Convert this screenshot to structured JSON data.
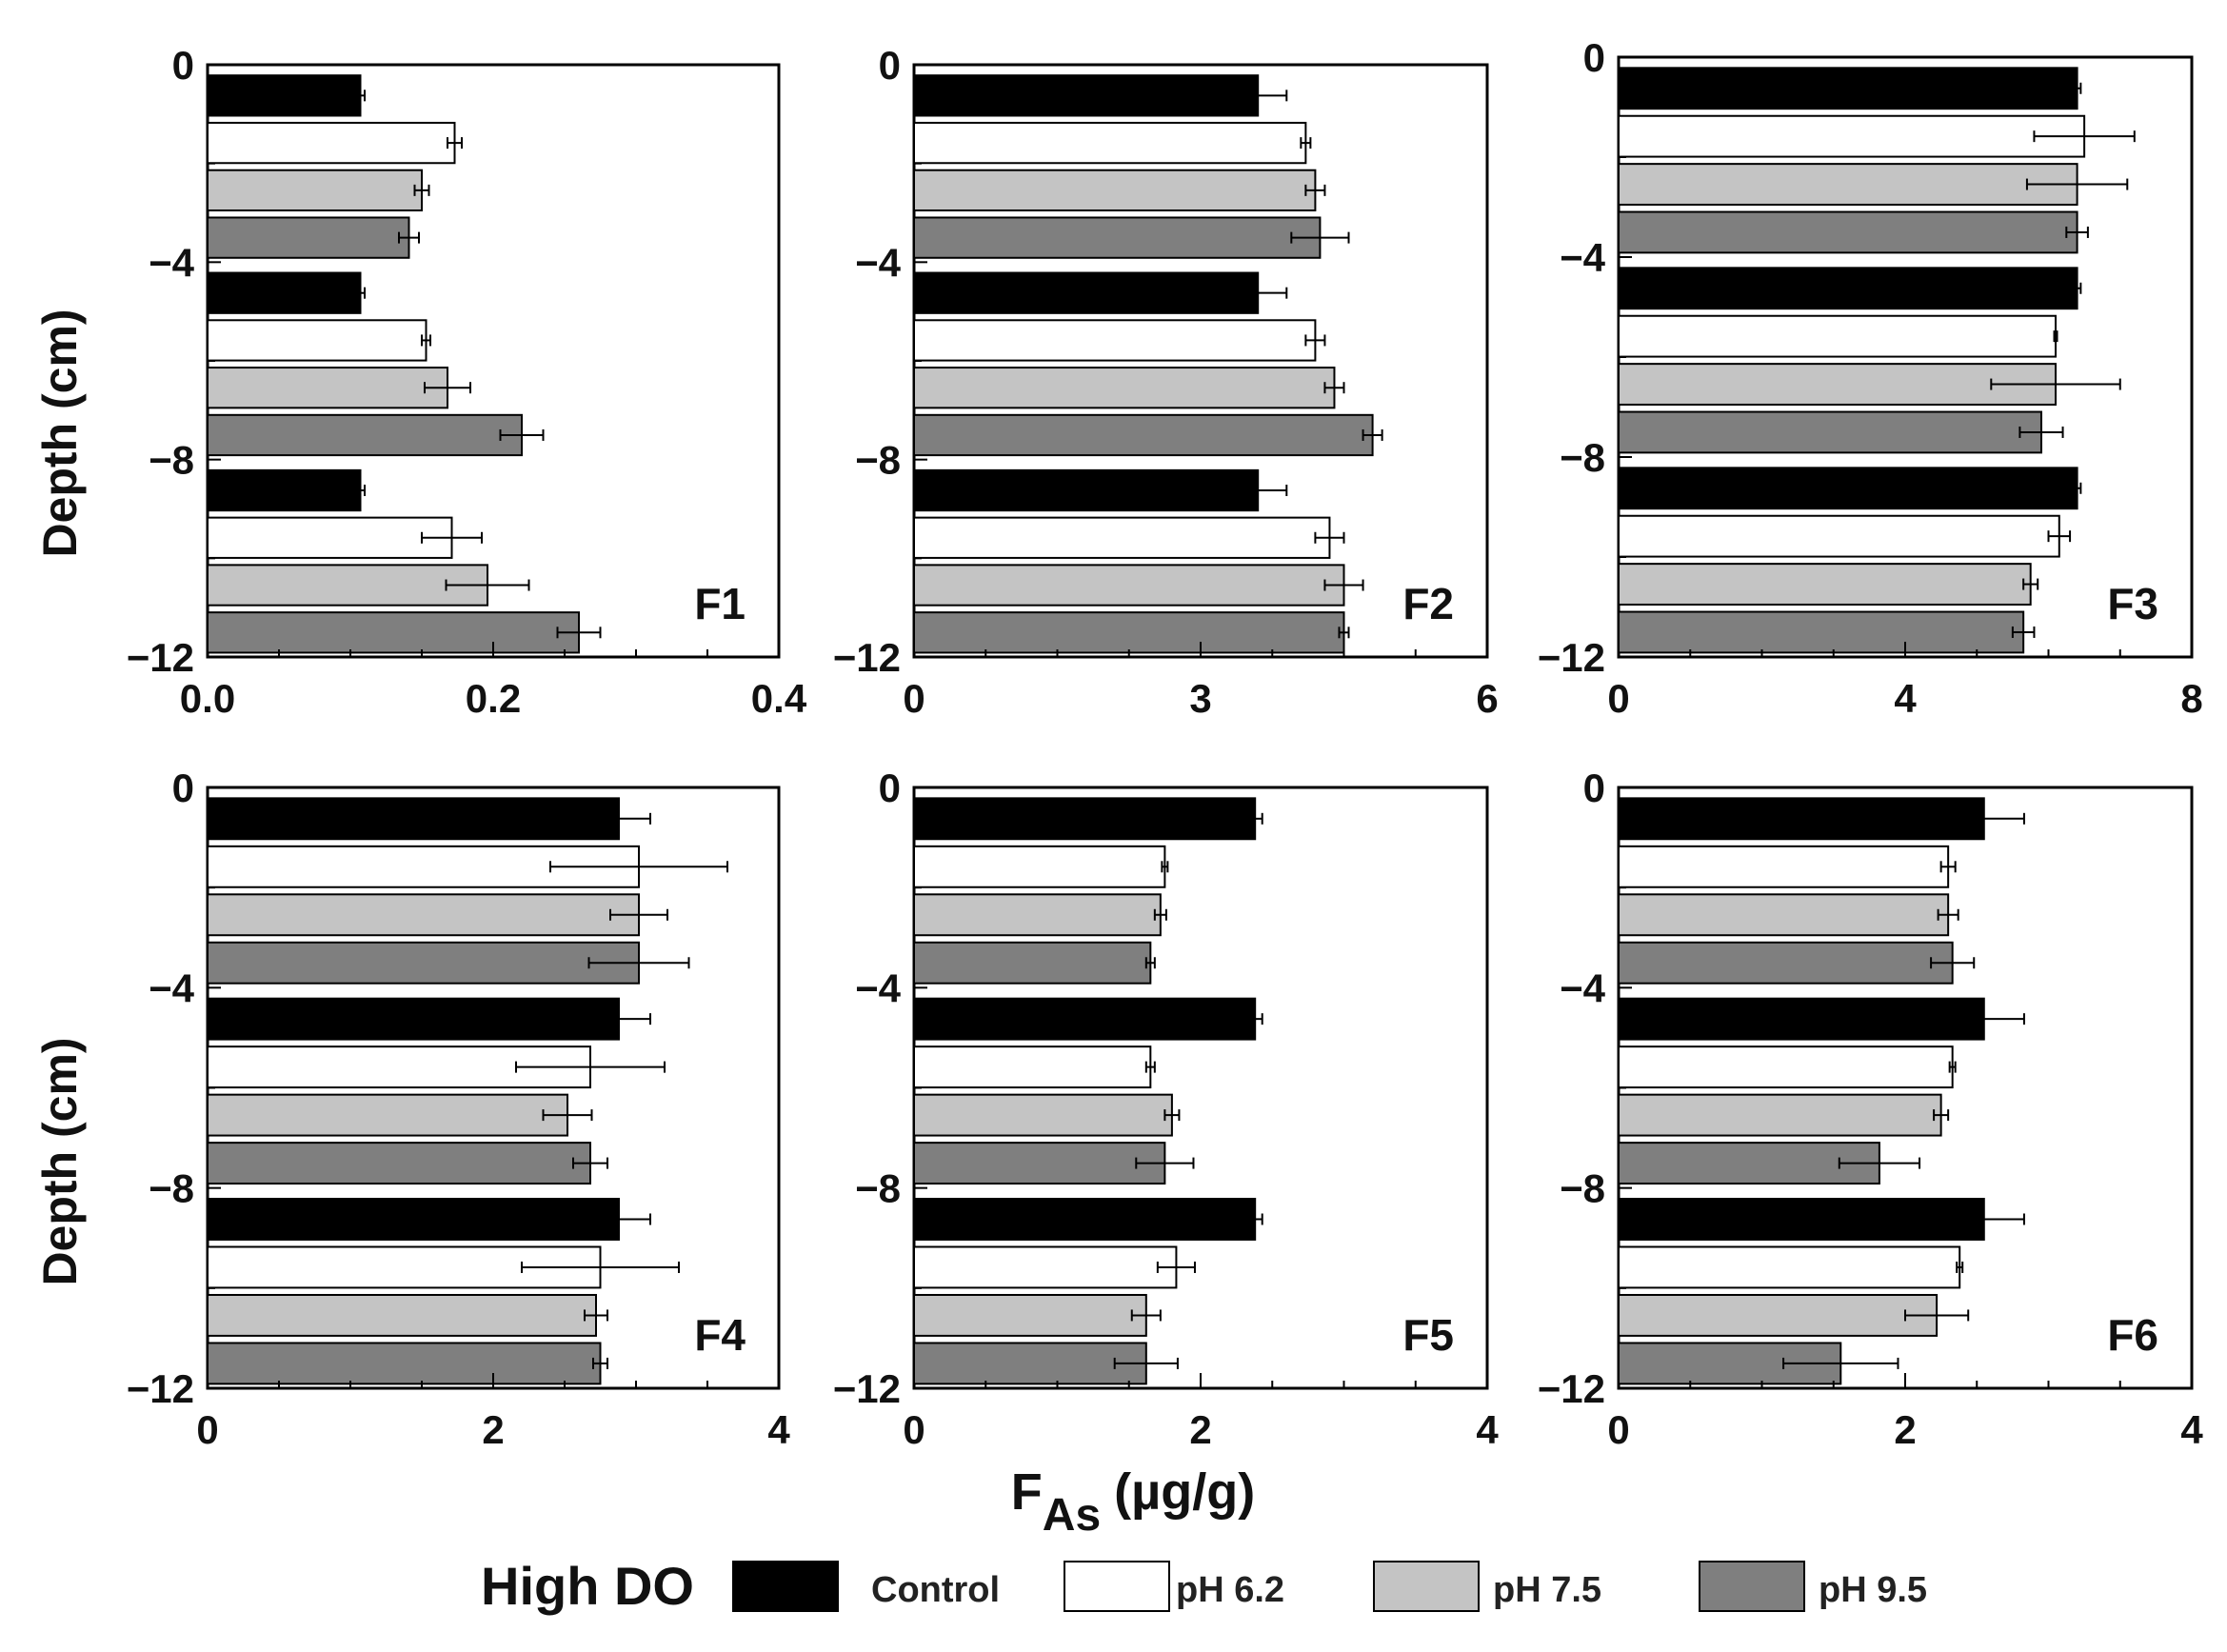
{
  "figure": {
    "ylabel": "Depth (cm)",
    "xlabel_main": "F",
    "xlabel_sub": "As",
    "xlabel_unit": "(µg/g)"
  },
  "legend": {
    "title": "High DO",
    "entries": [
      {
        "label": "Control",
        "color": "#000000"
      },
      {
        "label": "pH 6.2",
        "color": "#ffffff"
      },
      {
        "label": "pH 7.5",
        "color": "#c4c4c4"
      },
      {
        "label": "pH 9.5",
        "color": "#7f7f7f"
      }
    ]
  },
  "chart_data": [
    {
      "type": "bar",
      "orientation": "horizontal",
      "title": "F1",
      "xlim": [
        0,
        0.4
      ],
      "xticks": [
        "0.0",
        "0.2",
        "0.4"
      ],
      "ylim": [
        -12,
        0
      ],
      "yticks": [
        "0",
        "−4",
        "−8",
        "−12"
      ],
      "depth_groups": [
        "0 to -4",
        "-4 to -8",
        "-8 to -12"
      ],
      "series": [
        {
          "name": "Control",
          "values": [
            0.107,
            0.107,
            0.107
          ],
          "errors": [
            0.003,
            0.003,
            0.003
          ]
        },
        {
          "name": "pH 6.2",
          "values": [
            0.173,
            0.153,
            0.171
          ],
          "errors": [
            0.005,
            0.003,
            0.021
          ]
        },
        {
          "name": "pH 7.5",
          "values": [
            0.15,
            0.168,
            0.196
          ],
          "errors": [
            0.005,
            0.016,
            0.029
          ]
        },
        {
          "name": "pH 9.5",
          "values": [
            0.141,
            0.22,
            0.26
          ],
          "errors": [
            0.007,
            0.015,
            0.015
          ]
        }
      ]
    },
    {
      "type": "bar",
      "orientation": "horizontal",
      "title": "F2",
      "xlim": [
        0,
        6
      ],
      "xticks": [
        "0",
        "3",
        "6"
      ],
      "ylim": [
        -12,
        0
      ],
      "yticks": [
        "0",
        "−4",
        "−8",
        "−12"
      ],
      "depth_groups": [
        "0 to -4",
        "-4 to -8",
        "-8 to -12"
      ],
      "series": [
        {
          "name": "Control",
          "values": [
            3.6,
            3.6,
            3.6
          ],
          "errors": [
            0.3,
            0.3,
            0.3
          ]
        },
        {
          "name": "pH 6.2",
          "values": [
            4.1,
            4.2,
            4.35
          ],
          "errors": [
            0.05,
            0.1,
            0.15
          ]
        },
        {
          "name": "pH 7.5",
          "values": [
            4.2,
            4.4,
            4.5
          ],
          "errors": [
            0.1,
            0.1,
            0.2
          ]
        },
        {
          "name": "pH 9.5",
          "values": [
            4.25,
            4.8,
            4.5
          ],
          "errors": [
            0.3,
            0.1,
            0.05
          ]
        }
      ]
    },
    {
      "type": "bar",
      "orientation": "horizontal",
      "title": "F3",
      "xlim": [
        0,
        8
      ],
      "xticks": [
        "0",
        "4",
        "8"
      ],
      "ylim": [
        -12,
        0
      ],
      "yticks": [
        "0",
        "−4",
        "−8",
        "−12"
      ],
      "depth_groups": [
        "0 to -4",
        "-4 to -8",
        "-8 to -12"
      ],
      "series": [
        {
          "name": "Control",
          "values": [
            6.4,
            6.4,
            6.4
          ],
          "errors": [
            0.05,
            0.05,
            0.05
          ]
        },
        {
          "name": "pH 6.2",
          "values": [
            6.5,
            6.1,
            6.15
          ],
          "errors": [
            0.7,
            0.02,
            0.15
          ]
        },
        {
          "name": "pH 7.5",
          "values": [
            6.4,
            6.1,
            5.75
          ],
          "errors": [
            0.7,
            0.9,
            0.1
          ]
        },
        {
          "name": "pH 9.5",
          "values": [
            6.4,
            5.9,
            5.65
          ],
          "errors": [
            0.15,
            0.3,
            0.15
          ]
        }
      ]
    },
    {
      "type": "bar",
      "orientation": "horizontal",
      "title": "F4",
      "xlim": [
        0,
        4
      ],
      "xticks": [
        "0",
        "2",
        "4"
      ],
      "ylim": [
        -12,
        0
      ],
      "yticks": [
        "0",
        "−4",
        "−8",
        "−12"
      ],
      "depth_groups": [
        "0 to -4",
        "-4 to -8",
        "-8 to -12"
      ],
      "series": [
        {
          "name": "Control",
          "values": [
            2.88,
            2.88,
            2.88
          ],
          "errors": [
            0.22,
            0.22,
            0.22
          ]
        },
        {
          "name": "pH 6.2",
          "values": [
            3.02,
            2.68,
            2.75
          ],
          "errors": [
            0.62,
            0.52,
            0.55
          ]
        },
        {
          "name": "pH 7.5",
          "values": [
            3.02,
            2.52,
            2.72
          ],
          "errors": [
            0.2,
            0.17,
            0.08
          ]
        },
        {
          "name": "pH 9.5",
          "values": [
            3.02,
            2.68,
            2.75
          ],
          "errors": [
            0.35,
            0.12,
            0.05
          ]
        }
      ]
    },
    {
      "type": "bar",
      "orientation": "horizontal",
      "title": "F5",
      "xlim": [
        0,
        4
      ],
      "xticks": [
        "0",
        "2",
        "4"
      ],
      "ylim": [
        -12,
        0
      ],
      "yticks": [
        "0",
        "−4",
        "−8",
        "−12"
      ],
      "depth_groups": [
        "0 to -4",
        "-4 to -8",
        "-8 to -12"
      ],
      "series": [
        {
          "name": "Control",
          "values": [
            2.38,
            2.38,
            2.38
          ],
          "errors": [
            0.05,
            0.05,
            0.05
          ]
        },
        {
          "name": "pH 6.2",
          "values": [
            1.75,
            1.65,
            1.83
          ],
          "errors": [
            0.02,
            0.03,
            0.13
          ]
        },
        {
          "name": "pH 7.5",
          "values": [
            1.72,
            1.8,
            1.62
          ],
          "errors": [
            0.04,
            0.05,
            0.1
          ]
        },
        {
          "name": "pH 9.5",
          "values": [
            1.65,
            1.75,
            1.62
          ],
          "errors": [
            0.03,
            0.2,
            0.22
          ]
        }
      ]
    },
    {
      "type": "bar",
      "orientation": "horizontal",
      "title": "F6",
      "xlim": [
        0,
        4
      ],
      "xticks": [
        "0",
        "2",
        "4"
      ],
      "ylim": [
        -12,
        0
      ],
      "yticks": [
        "0",
        "−4",
        "−8",
        "−12"
      ],
      "depth_groups": [
        "0 to -4",
        "-4 to -8",
        "-8 to -12"
      ],
      "series": [
        {
          "name": "Control",
          "values": [
            2.55,
            2.55,
            2.55
          ],
          "errors": [
            0.28,
            0.28,
            0.28
          ]
        },
        {
          "name": "pH 6.2",
          "values": [
            2.3,
            2.33,
            2.38
          ],
          "errors": [
            0.05,
            0.02,
            0.02
          ]
        },
        {
          "name": "pH 7.5",
          "values": [
            2.3,
            2.25,
            2.22
          ],
          "errors": [
            0.07,
            0.05,
            0.22
          ]
        },
        {
          "name": "pH 9.5",
          "values": [
            2.33,
            1.82,
            1.55
          ],
          "errors": [
            0.15,
            0.28,
            0.4
          ]
        }
      ]
    }
  ]
}
